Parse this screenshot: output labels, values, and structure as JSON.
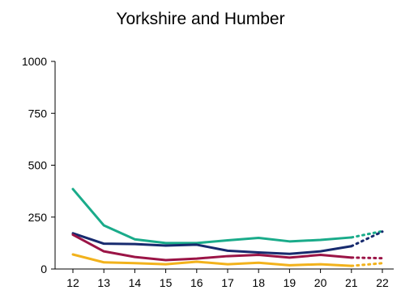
{
  "chart_data": {
    "type": "line",
    "title": "Yorkshire and Humber",
    "xlabel": "",
    "ylabel": "",
    "categories": [
      "12",
      "13",
      "14",
      "15",
      "16",
      "17",
      "18",
      "19",
      "20",
      "21",
      "22"
    ],
    "ylim": [
      0,
      1000
    ],
    "yticks": [
      "0",
      "250",
      "500",
      "750",
      "1000"
    ],
    "projected_from": "21",
    "grid": false,
    "legend": "none",
    "series": [
      {
        "color": "#1aab8a",
        "values": [
          385,
          210,
          143,
          125,
          125,
          138,
          150,
          133,
          140,
          152,
          182
        ]
      },
      {
        "color": "#172a6e",
        "values": [
          172,
          122,
          120,
          113,
          117,
          88,
          80,
          73,
          85,
          110,
          180
        ]
      },
      {
        "color": "#9b1446",
        "values": [
          165,
          85,
          58,
          43,
          50,
          62,
          68,
          55,
          68,
          55,
          52
        ]
      },
      {
        "color": "#f2b21c",
        "values": [
          70,
          32,
          28,
          23,
          35,
          23,
          30,
          18,
          23,
          15,
          28
        ]
      }
    ]
  }
}
